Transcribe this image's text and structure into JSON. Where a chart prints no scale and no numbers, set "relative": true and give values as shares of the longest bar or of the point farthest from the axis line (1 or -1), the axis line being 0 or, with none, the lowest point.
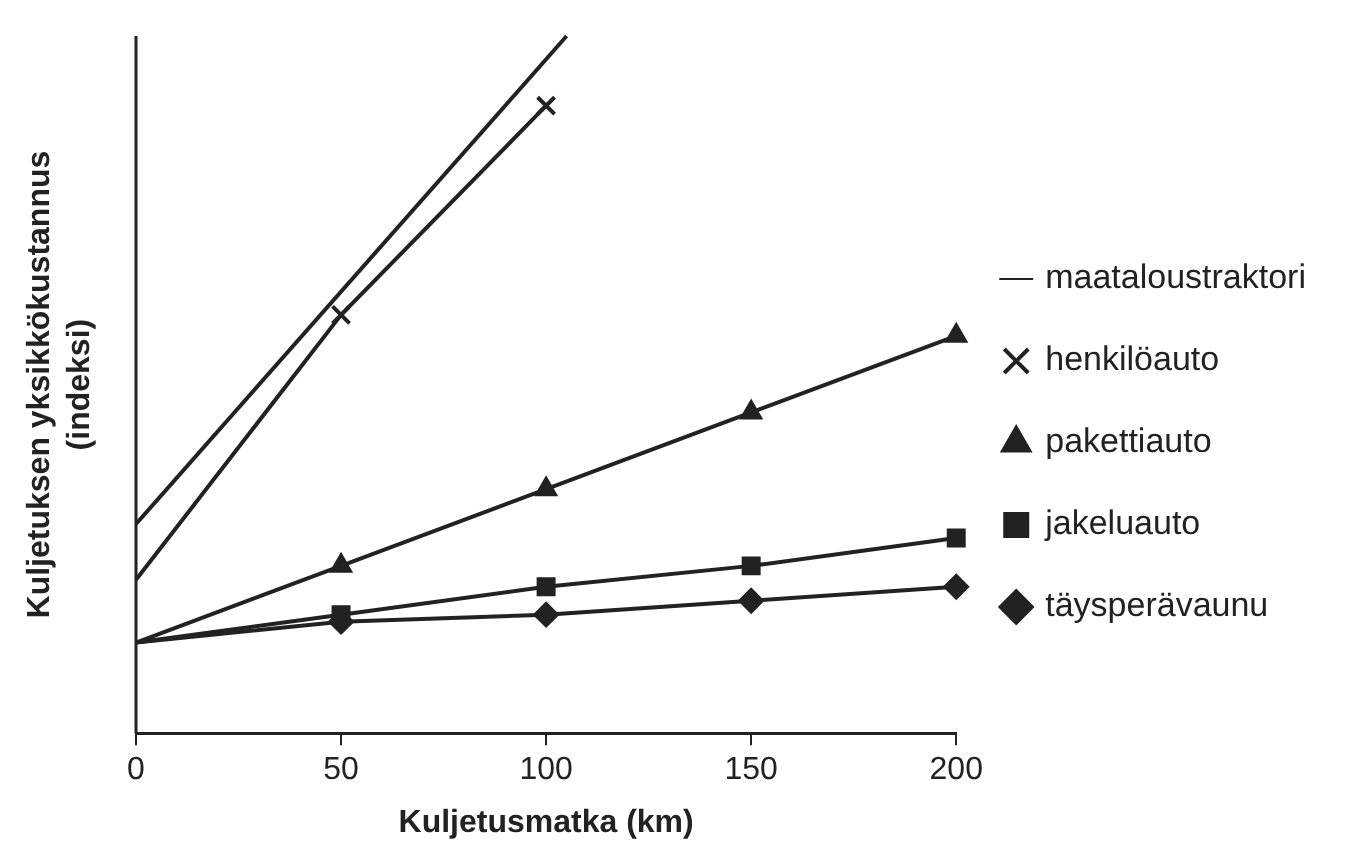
{
  "chart_data": {
    "type": "line",
    "relative": true,
    "xlabel": "Kuljetusmatka (km)",
    "ylabel": "Kuljetuksen yksikkökustannus\n(indeksi)",
    "xlim": [
      0,
      200
    ],
    "xticks": [
      0,
      50,
      100,
      150,
      200
    ],
    "legend": "right",
    "grid": false,
    "series": [
      {
        "name": "maataloustraktori",
        "color": "#222222",
        "marker": "none",
        "x": [
          0,
          105
        ],
        "values": [
          0.3,
          1.0
        ]
      },
      {
        "name": "henkilöauto",
        "color": "#222222",
        "marker": "cross",
        "x": [
          0,
          50,
          100
        ],
        "values": [
          0.22,
          0.6,
          0.9
        ]
      },
      {
        "name": "pakettiauto",
        "color": "#222222",
        "marker": "triangle",
        "x": [
          0,
          50,
          100,
          150,
          200
        ],
        "values": [
          0.13,
          0.24,
          0.35,
          0.46,
          0.57
        ]
      },
      {
        "name": "jakeluauto",
        "color": "#222222",
        "marker": "square",
        "x": [
          0,
          50,
          100,
          150,
          200
        ],
        "values": [
          0.13,
          0.17,
          0.21,
          0.24,
          0.28
        ]
      },
      {
        "name": "täysperävaunu",
        "color": "#222222",
        "marker": "diamond",
        "x": [
          0,
          50,
          100,
          150,
          200
        ],
        "values": [
          0.13,
          0.16,
          0.17,
          0.19,
          0.21
        ]
      }
    ]
  }
}
